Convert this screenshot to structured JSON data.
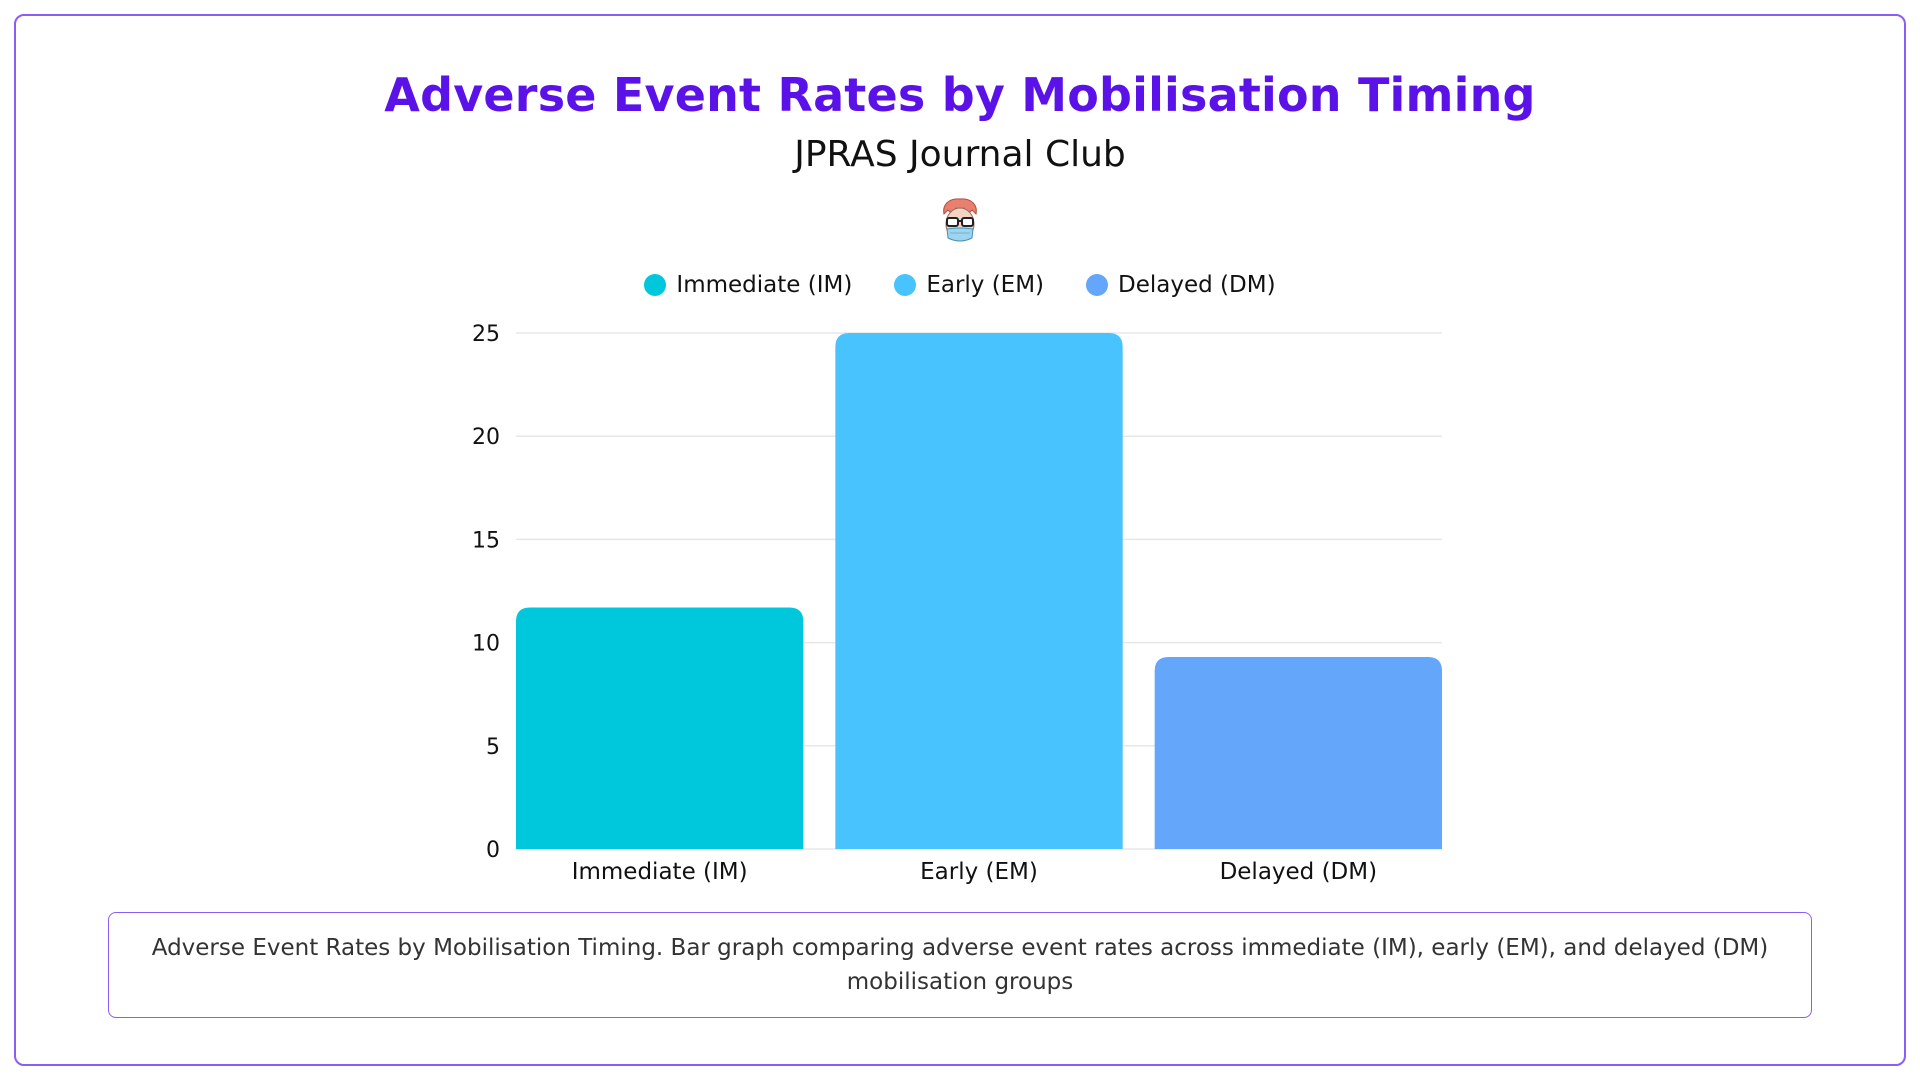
{
  "header": {
    "title": "Adverse Event Rates by Mobilisation Timing",
    "subtitle": "JPRAS Journal Club"
  },
  "avatar": {
    "icon": "doctor-avatar-icon"
  },
  "caption": "Adverse Event Rates by Mobilisation Timing. Bar graph comparing adverse event rates across immediate (IM), early (EM), and delayed (DM) mobilisation groups",
  "colors": {
    "title": "#5b12e8",
    "border": "#8b5cf6",
    "grid": "#e5e7eb",
    "immediate": "#00c8dc",
    "early": "#48c3fd",
    "delayed": "#64a6fa"
  },
  "chart_data": {
    "type": "bar",
    "categories": [
      "Immediate (IM)",
      "Early (EM)",
      "Delayed (DM)"
    ],
    "values": [
      11.7,
      25.0,
      9.3
    ],
    "colors": [
      "#00c8dc",
      "#48c3fd",
      "#64a6fa"
    ],
    "legend": [
      "Immediate (IM)",
      "Early (EM)",
      "Delayed (DM)"
    ],
    "legend_position": "top-center",
    "yticks": [
      0,
      5,
      10,
      15,
      20,
      25
    ],
    "ylim": [
      0,
      25
    ],
    "grid": true,
    "xlabel": "",
    "ylabel": ""
  }
}
